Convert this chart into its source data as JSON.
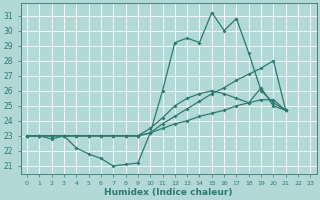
{
  "xlabel": "Humidex (Indice chaleur)",
  "ylabel": "",
  "bg_color": "#b2d8d8",
  "grid_color": "#ffffff",
  "line_color": "#2d7a6e",
  "xlim": [
    -0.5,
    23.5
  ],
  "ylim": [
    20.5,
    31.8
  ],
  "yticks": [
    21,
    22,
    23,
    24,
    25,
    26,
    27,
    28,
    29,
    30,
    31
  ],
  "xticks": [
    0,
    1,
    2,
    3,
    4,
    5,
    6,
    7,
    8,
    9,
    10,
    11,
    12,
    13,
    14,
    15,
    16,
    17,
    18,
    19,
    20,
    21,
    22,
    23
  ],
  "series1_x": [
    0,
    1,
    2,
    3,
    4,
    5,
    6,
    7,
    8,
    9,
    10,
    11,
    12,
    13,
    14,
    15,
    16,
    17,
    18,
    19,
    20,
    21
  ],
  "series1_y": [
    23.0,
    23.0,
    22.8,
    23.0,
    22.2,
    21.8,
    21.5,
    21.0,
    21.1,
    21.2,
    23.2,
    26.0,
    29.2,
    29.5,
    29.2,
    31.2,
    30.0,
    30.8,
    28.5,
    26.0,
    25.2,
    24.7
  ],
  "series2_x": [
    0,
    1,
    2,
    3,
    4,
    5,
    6,
    7,
    8,
    9,
    10,
    11,
    12,
    13,
    14,
    15,
    16,
    17,
    18,
    19,
    20,
    21
  ],
  "series2_y": [
    23.0,
    23.0,
    23.0,
    23.0,
    23.0,
    23.0,
    23.0,
    23.0,
    23.0,
    23.0,
    23.2,
    23.5,
    23.8,
    24.0,
    24.3,
    24.5,
    24.7,
    25.0,
    25.2,
    25.4,
    25.4,
    24.7
  ],
  "series3_x": [
    0,
    1,
    2,
    3,
    4,
    5,
    6,
    7,
    8,
    9,
    10,
    11,
    12,
    13,
    14,
    15,
    16,
    17,
    18,
    19,
    20,
    21
  ],
  "series3_y": [
    23.0,
    23.0,
    23.0,
    23.0,
    23.0,
    23.0,
    23.0,
    23.0,
    23.0,
    23.0,
    23.5,
    24.2,
    25.0,
    25.5,
    25.8,
    26.0,
    25.8,
    25.5,
    25.2,
    26.2,
    25.0,
    24.7
  ],
  "series4_x": [
    0,
    1,
    2,
    3,
    4,
    5,
    6,
    7,
    8,
    9,
    10,
    11,
    12,
    13,
    14,
    15,
    16,
    17,
    18,
    19,
    20,
    21
  ],
  "series4_y": [
    23.0,
    23.0,
    23.0,
    23.0,
    23.0,
    23.0,
    23.0,
    23.0,
    23.0,
    23.0,
    23.2,
    23.8,
    24.3,
    24.8,
    25.3,
    25.8,
    26.2,
    26.7,
    27.1,
    27.5,
    28.0,
    24.7
  ],
  "marker": "D",
  "marker_size": 2.0,
  "line_width": 0.9
}
